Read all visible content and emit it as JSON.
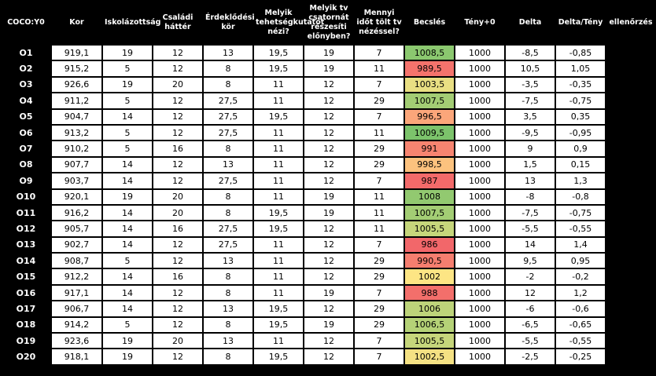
{
  "headers": [
    "COCO:Y0",
    "Kor",
    "Iskolázottság",
    "Családi háttér",
    "Érdeklődési kör",
    "Melyik tehetségkutatót nézi?",
    "Melyik tv csatornát részesíti előnyben?",
    "Mennyi időt tölt tv nézéssel?",
    "Becslés",
    "Tény+0",
    "Delta",
    "Delta/Tény",
    "ellenőrzés"
  ],
  "rows": [
    {
      "id": "O1",
      "kor": "919,1",
      "isk": "19",
      "csal": "12",
      "erd": "13",
      "teh": "19,5",
      "tv": "19",
      "ido": "7",
      "becs": "1008,5",
      "teny": "1000",
      "delta": "-8,5",
      "dt": "-0,85",
      "chk": "",
      "color": "#8bc86f"
    },
    {
      "id": "O2",
      "kor": "915,2",
      "isk": "5",
      "csal": "12",
      "erd": "8",
      "teh": "19,5",
      "tv": "19",
      "ido": "11",
      "becs": "989,5",
      "teny": "1000",
      "delta": "10,5",
      "dt": "1,05",
      "chk": "",
      "color": "#f4736c"
    },
    {
      "id": "O3",
      "kor": "926,6",
      "isk": "19",
      "csal": "20",
      "erd": "8",
      "teh": "11",
      "tv": "12",
      "ido": "7",
      "becs": "1003,5",
      "teny": "1000",
      "delta": "-3,5",
      "dt": "-0,35",
      "chk": "",
      "color": "#e9df83"
    },
    {
      "id": "O4",
      "kor": "911,2",
      "isk": "5",
      "csal": "12",
      "erd": "27,5",
      "teh": "11",
      "tv": "12",
      "ido": "29",
      "becs": "1007,5",
      "teny": "1000",
      "delta": "-7,5",
      "dt": "-0,75",
      "chk": "",
      "color": "#a3cd74"
    },
    {
      "id": "O5",
      "kor": "904,7",
      "isk": "14",
      "csal": "12",
      "erd": "27,5",
      "teh": "19,5",
      "tv": "12",
      "ido": "7",
      "becs": "996,5",
      "teny": "1000",
      "delta": "3,5",
      "dt": "0,35",
      "chk": "",
      "color": "#fba67a"
    },
    {
      "id": "O6",
      "kor": "913,2",
      "isk": "5",
      "csal": "12",
      "erd": "27,5",
      "teh": "11",
      "tv": "12",
      "ido": "11",
      "becs": "1009,5",
      "teny": "1000",
      "delta": "-9,5",
      "dt": "-0,95",
      "chk": "",
      "color": "#7cc36b"
    },
    {
      "id": "O7",
      "kor": "910,2",
      "isk": "5",
      "csal": "16",
      "erd": "8",
      "teh": "11",
      "tv": "12",
      "ido": "29",
      "becs": "991",
      "teny": "1000",
      "delta": "9",
      "dt": "0,9",
      "chk": "",
      "color": "#f68470"
    },
    {
      "id": "O8",
      "kor": "907,7",
      "isk": "14",
      "csal": "12",
      "erd": "13",
      "teh": "11",
      "tv": "12",
      "ido": "29",
      "becs": "998,5",
      "teny": "1000",
      "delta": "1,5",
      "dt": "0,15",
      "chk": "",
      "color": "#fcc27e"
    },
    {
      "id": "O9",
      "kor": "903,7",
      "isk": "14",
      "csal": "12",
      "erd": "27,5",
      "teh": "11",
      "tv": "12",
      "ido": "7",
      "becs": "987",
      "teny": "1000",
      "delta": "13",
      "dt": "1,3",
      "chk": "",
      "color": "#f36a6a"
    },
    {
      "id": "O10",
      "kor": "920,1",
      "isk": "19",
      "csal": "20",
      "erd": "8",
      "teh": "11",
      "tv": "19",
      "ido": "11",
      "becs": "1008",
      "teny": "1000",
      "delta": "-8",
      "dt": "-0,8",
      "chk": "",
      "color": "#92c970"
    },
    {
      "id": "O11",
      "kor": "916,2",
      "isk": "14",
      "csal": "20",
      "erd": "8",
      "teh": "19,5",
      "tv": "19",
      "ido": "11",
      "becs": "1007,5",
      "teny": "1000",
      "delta": "-7,5",
      "dt": "-0,75",
      "chk": "",
      "color": "#a3cd74"
    },
    {
      "id": "O12",
      "kor": "905,7",
      "isk": "14",
      "csal": "16",
      "erd": "27,5",
      "teh": "19,5",
      "tv": "12",
      "ido": "11",
      "becs": "1005,5",
      "teny": "1000",
      "delta": "-5,5",
      "dt": "-0,55",
      "chk": "",
      "color": "#c6d67b"
    },
    {
      "id": "O13",
      "kor": "902,7",
      "isk": "14",
      "csal": "12",
      "erd": "27,5",
      "teh": "11",
      "tv": "12",
      "ido": "7",
      "becs": "986",
      "teny": "1000",
      "delta": "14",
      "dt": "1,4",
      "chk": "",
      "color": "#f2676a"
    },
    {
      "id": "O14",
      "kor": "908,7",
      "isk": "5",
      "csal": "12",
      "erd": "13",
      "teh": "11",
      "tv": "12",
      "ido": "29",
      "becs": "990,5",
      "teny": "1000",
      "delta": "9,5",
      "dt": "0,95",
      "chk": "",
      "color": "#f57e6f"
    },
    {
      "id": "O15",
      "kor": "912,2",
      "isk": "14",
      "csal": "16",
      "erd": "8",
      "teh": "11",
      "tv": "12",
      "ido": "29",
      "becs": "1002",
      "teny": "1000",
      "delta": "-2",
      "dt": "-0,2",
      "chk": "",
      "color": "#fde584"
    },
    {
      "id": "O16",
      "kor": "917,1",
      "isk": "14",
      "csal": "12",
      "erd": "8",
      "teh": "11",
      "tv": "19",
      "ido": "7",
      "becs": "988",
      "teny": "1000",
      "delta": "12",
      "dt": "1,2",
      "chk": "",
      "color": "#f36f6b"
    },
    {
      "id": "O17",
      "kor": "906,7",
      "isk": "14",
      "csal": "12",
      "erd": "13",
      "teh": "19,5",
      "tv": "12",
      "ido": "29",
      "becs": "1006",
      "teny": "1000",
      "delta": "-6",
      "dt": "-0,6",
      "chk": "",
      "color": "#bdd47a"
    },
    {
      "id": "O18",
      "kor": "914,2",
      "isk": "5",
      "csal": "12",
      "erd": "8",
      "teh": "19,5",
      "tv": "19",
      "ido": "29",
      "becs": "1006,5",
      "teny": "1000",
      "delta": "-6,5",
      "dt": "-0,65",
      "chk": "",
      "color": "#b5d277"
    },
    {
      "id": "O19",
      "kor": "923,6",
      "isk": "19",
      "csal": "20",
      "erd": "13",
      "teh": "11",
      "tv": "12",
      "ido": "7",
      "becs": "1005,5",
      "teny": "1000",
      "delta": "-5,5",
      "dt": "-0,55",
      "chk": "",
      "color": "#c6d67b"
    },
    {
      "id": "O20",
      "kor": "918,1",
      "isk": "19",
      "csal": "12",
      "erd": "8",
      "teh": "19,5",
      "tv": "12",
      "ido": "7",
      "becs": "1002,5",
      "teny": "1000",
      "delta": "-2,5",
      "dt": "-0,25",
      "chk": "",
      "color": "#f4e183"
    }
  ]
}
